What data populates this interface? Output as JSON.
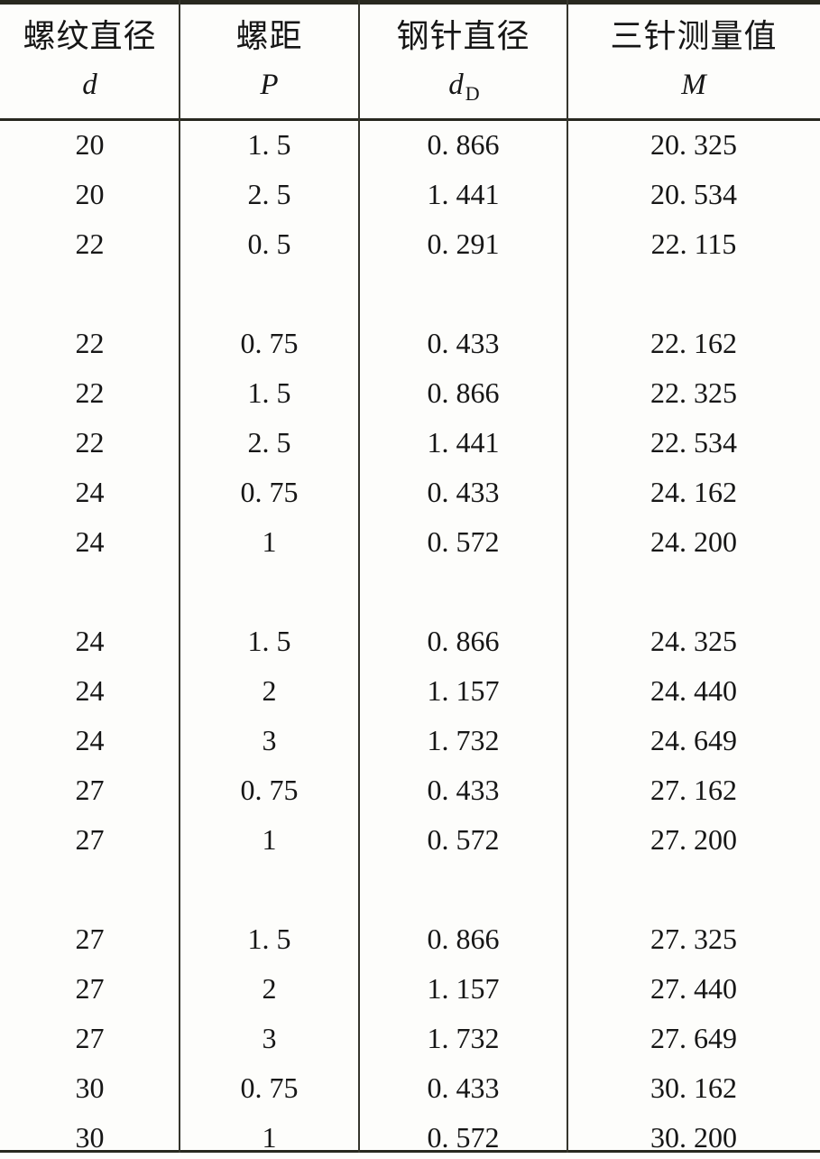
{
  "table": {
    "columns": [
      {
        "label_zh": "螺纹直径",
        "symbol": "d",
        "symbol_sub": ""
      },
      {
        "label_zh": "螺距",
        "symbol": "P",
        "symbol_sub": ""
      },
      {
        "label_zh": "钢针直径",
        "symbol": "d",
        "symbol_sub": "D"
      },
      {
        "label_zh": "三针测量值",
        "symbol": "M",
        "symbol_sub": ""
      }
    ],
    "rows": [
      [
        "20",
        "1. 5",
        "0. 866",
        "20. 325"
      ],
      [
        "20",
        "2. 5",
        "1. 441",
        "20. 534"
      ],
      [
        "22",
        "0. 5",
        "0. 291",
        "22. 115"
      ],
      null,
      [
        "22",
        "0. 75",
        "0. 433",
        "22. 162"
      ],
      [
        "22",
        "1. 5",
        "0. 866",
        "22. 325"
      ],
      [
        "22",
        "2. 5",
        "1. 441",
        "22. 534"
      ],
      [
        "24",
        "0. 75",
        "0. 433",
        "24. 162"
      ],
      [
        "24",
        "1",
        "0. 572",
        "24. 200"
      ],
      null,
      [
        "24",
        "1. 5",
        "0. 866",
        "24. 325"
      ],
      [
        "24",
        "2",
        "1. 157",
        "24. 440"
      ],
      [
        "24",
        "3",
        "1. 732",
        "24. 649"
      ],
      [
        "27",
        "0. 75",
        "0. 433",
        "27. 162"
      ],
      [
        "27",
        "1",
        "0. 572",
        "27. 200"
      ],
      null,
      [
        "27",
        "1. 5",
        "0. 866",
        "27. 325"
      ],
      [
        "27",
        "2",
        "1. 157",
        "27. 440"
      ],
      [
        "27",
        "3",
        "1. 732",
        "27. 649"
      ],
      [
        "30",
        "0. 75",
        "0. 433",
        "30. 162"
      ],
      [
        "30",
        "1",
        "0. 572",
        "30. 200"
      ]
    ]
  },
  "colors": {
    "text": "#161616",
    "rule": "#28281f",
    "divider": "#35352c",
    "background": "#fdfdfb"
  }
}
